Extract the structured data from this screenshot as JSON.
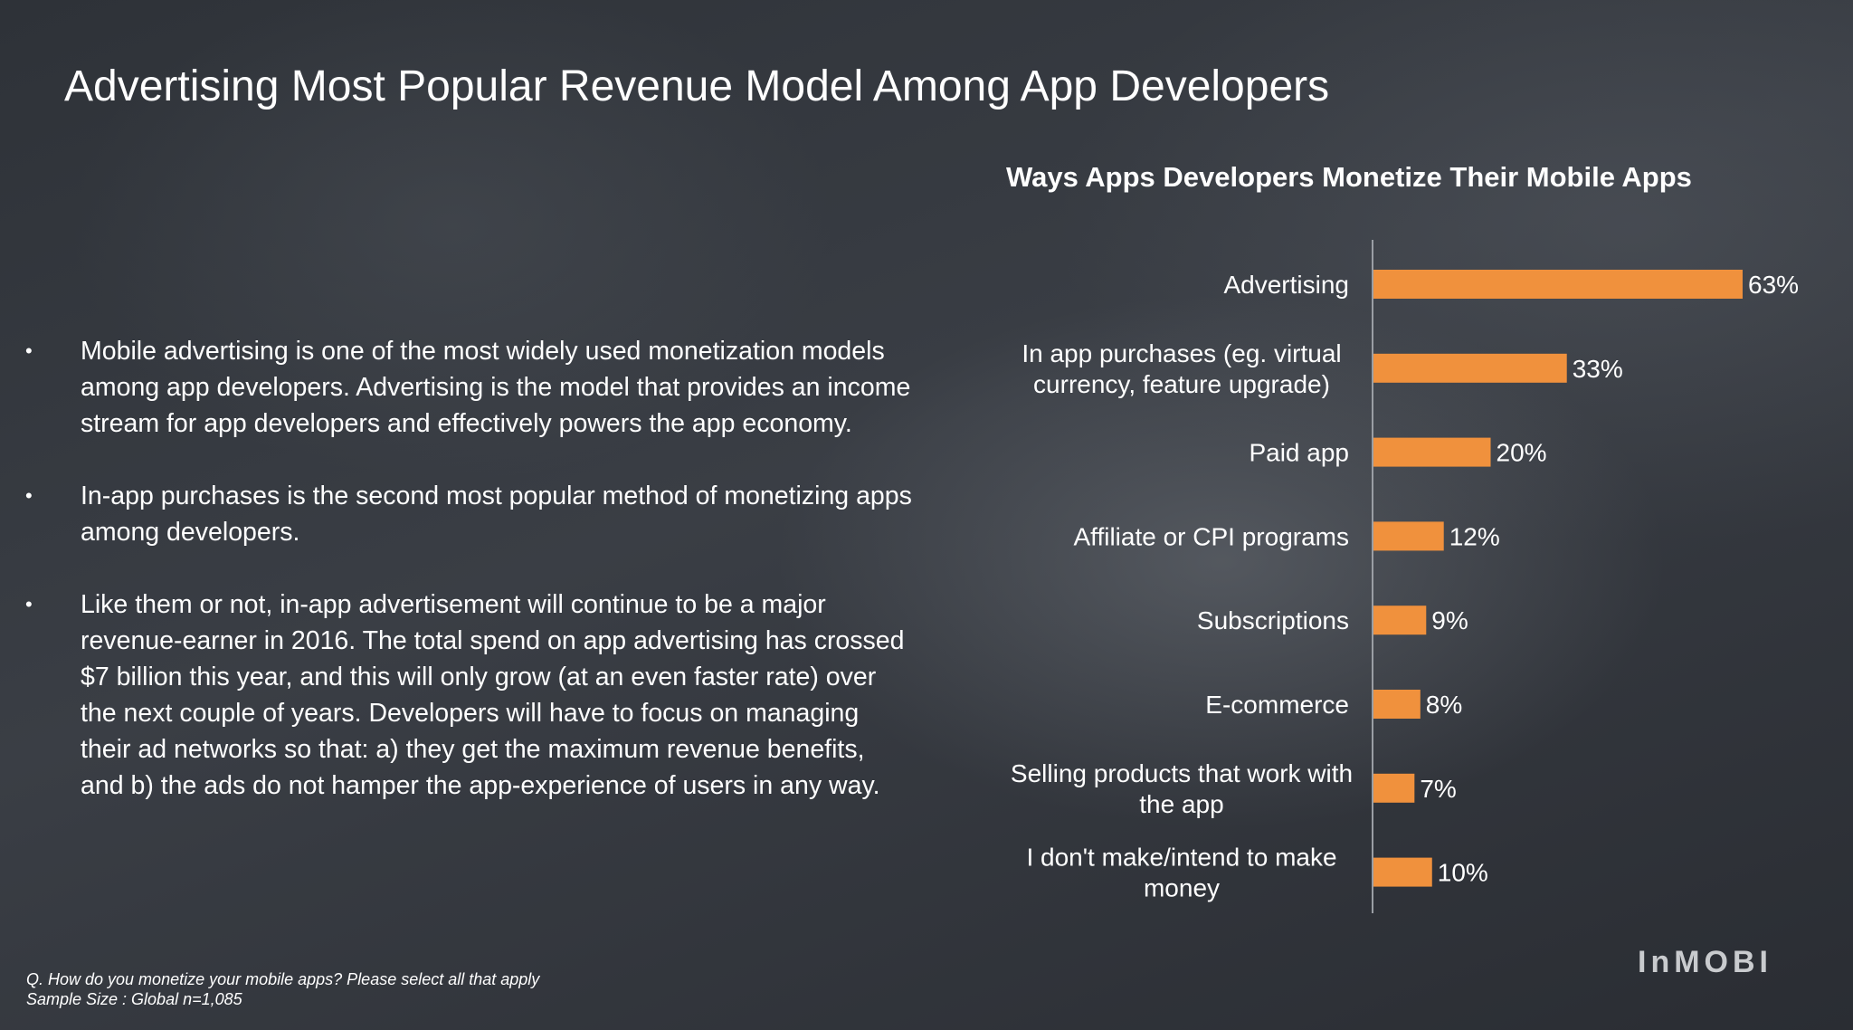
{
  "slide": {
    "title": "Advertising Most Popular Revenue Model Among App Developers",
    "bullets": [
      "Mobile advertising is one of the most widely used monetization models among app developers. Advertising is the model that provides an income stream for app developers and effectively powers the app economy.",
      "In-app purchases  is the second most popular method of monetizing apps among developers.",
      "Like them or not, in-app advertisement will continue to be a major revenue-earner in 2016. The total spend on app advertising has crossed $7 billion this year, and this will only grow (at an even faster rate) over the next couple of years. Developers will have to focus on managing their ad networks so that: a) they get the maximum revenue benefits, and b) the ads do not hamper the app-experience of users in any way."
    ],
    "bullet_symbol": "•",
    "footnote_question": "Q. How do you monetize your mobile apps? Please select all that apply",
    "footnote_sample": "Sample Size :  Global n=1,085",
    "logo": "InMOBI"
  },
  "chart_data": {
    "type": "bar",
    "orientation": "horizontal",
    "title": "Ways Apps Developers Monetize Their Mobile Apps",
    "categories": [
      [
        "Advertising"
      ],
      [
        "In app purchases (eg. virtual",
        "currency, feature upgrade)"
      ],
      [
        "Paid app"
      ],
      [
        "Affiliate or CPI programs"
      ],
      [
        "Subscriptions"
      ],
      [
        "E-commerce"
      ],
      [
        "Selling products that work with",
        "the app"
      ],
      [
        "I don't make/intend to make",
        "money"
      ]
    ],
    "values": [
      63,
      33,
      20,
      12,
      9,
      8,
      7,
      10
    ],
    "value_labels": [
      "63%",
      "33%",
      "20%",
      "12%",
      "9%",
      "8%",
      "7%",
      "10%"
    ],
    "xlim": [
      0,
      63
    ],
    "bar_color": "#f0913d",
    "grid": false,
    "legend": "none"
  }
}
